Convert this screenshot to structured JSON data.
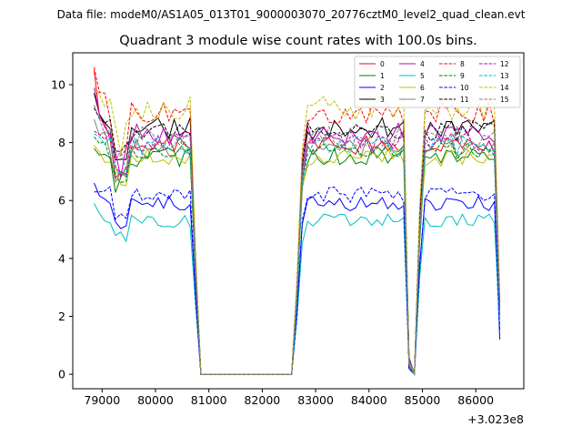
{
  "suptitle": "Data file: modeM0/AS1A05_013T01_9000003070_20776cztM0_level2_quad_clean.evt",
  "chart_data": {
    "type": "line",
    "title": "Quadrant 3 module wise count rates with 100.0s bins.",
    "xlabel": "",
    "ylabel": "",
    "x_offset_label": "+3.023e8",
    "xlim": [
      78450,
      86900
    ],
    "ylim": [
      -0.5,
      11.1
    ],
    "xticks": [
      79000,
      80000,
      81000,
      82000,
      83000,
      84000,
      85000,
      86000
    ],
    "xtick_labels": [
      "79000",
      "80000",
      "81000",
      "82000",
      "83000",
      "84000",
      "85000",
      "86000"
    ],
    "yticks": [
      0,
      2,
      4,
      6,
      8,
      10
    ],
    "ytick_labels": [
      "0",
      "2",
      "4",
      "6",
      "8",
      "10"
    ],
    "legend_position": "top-right",
    "segments": [
      {
        "start": 78850,
        "end": 80650,
        "level": "high"
      },
      {
        "start": 80650,
        "end": 80850,
        "level": "fall"
      },
      {
        "start": 80850,
        "end": 82550,
        "level": "zero"
      },
      {
        "start": 82550,
        "end": 82850,
        "level": "rise"
      },
      {
        "start": 82850,
        "end": 84650,
        "level": "high"
      },
      {
        "start": 84650,
        "end": 84750,
        "level": "fall"
      },
      {
        "start": 84750,
        "end": 84950,
        "level": "zero"
      },
      {
        "start": 84950,
        "end": 85050,
        "level": "rise"
      },
      {
        "start": 85050,
        "end": 86350,
        "level": "high"
      },
      {
        "start": 86350,
        "end": 86450,
        "level": "fall"
      }
    ],
    "bin_width": 100,
    "series": [
      {
        "name": "0",
        "color": "#ff0000",
        "dash": "solid",
        "base": 7.9,
        "start": 10.5,
        "end": 2.0
      },
      {
        "name": "1",
        "color": "#008000",
        "dash": "solid",
        "base": 7.5,
        "start": 7.8,
        "end": 2.2
      },
      {
        "name": "2",
        "color": "#0000ff",
        "dash": "solid",
        "base": 5.9,
        "start": 6.6,
        "end": 1.2
      },
      {
        "name": "3",
        "color": "#000000",
        "dash": "solid",
        "base": 8.5,
        "start": 9.7,
        "end": 2.4
      },
      {
        "name": "4",
        "color": "#bf00bf",
        "dash": "solid",
        "base": 8.3,
        "start": 9.9,
        "end": 2.3
      },
      {
        "name": "5",
        "color": "#00bfbf",
        "dash": "solid",
        "base": 5.3,
        "start": 5.9,
        "end": 1.6
      },
      {
        "name": "6",
        "color": "#bfbf00",
        "dash": "solid",
        "base": 7.5,
        "start": 7.9,
        "end": 2.0
      },
      {
        "name": "7",
        "color": "#808080",
        "dash": "solid",
        "base": 7.8,
        "start": 8.8,
        "end": 2.1
      },
      {
        "name": "8",
        "color": "#ff0000",
        "dash": "dashed",
        "base": 9.0,
        "start": 10.6,
        "end": 2.6
      },
      {
        "name": "9",
        "color": "#008000",
        "dash": "dashed",
        "base": 7.7,
        "start": 8.2,
        "end": 2.2
      },
      {
        "name": "10",
        "color": "#0000ff",
        "dash": "dashed",
        "base": 6.2,
        "start": 6.3,
        "end": 1.5
      },
      {
        "name": "11",
        "color": "#000000",
        "dash": "dashed",
        "base": 8.4,
        "start": 9.2,
        "end": 2.3
      },
      {
        "name": "12",
        "color": "#bf00bf",
        "dash": "dashed",
        "base": 8.0,
        "start": 8.4,
        "end": 2.2
      },
      {
        "name": "13",
        "color": "#00bfbf",
        "dash": "dashed",
        "base": 7.9,
        "start": 8.3,
        "end": 2.1
      },
      {
        "name": "14",
        "color": "#bfbf00",
        "dash": "dashed",
        "base": 9.2,
        "start": 9.9,
        "end": 2.7
      },
      {
        "name": "15",
        "color": "#808080",
        "dash": "dashed",
        "base": 8.2,
        "start": 9.3,
        "end": 2.3
      }
    ]
  }
}
